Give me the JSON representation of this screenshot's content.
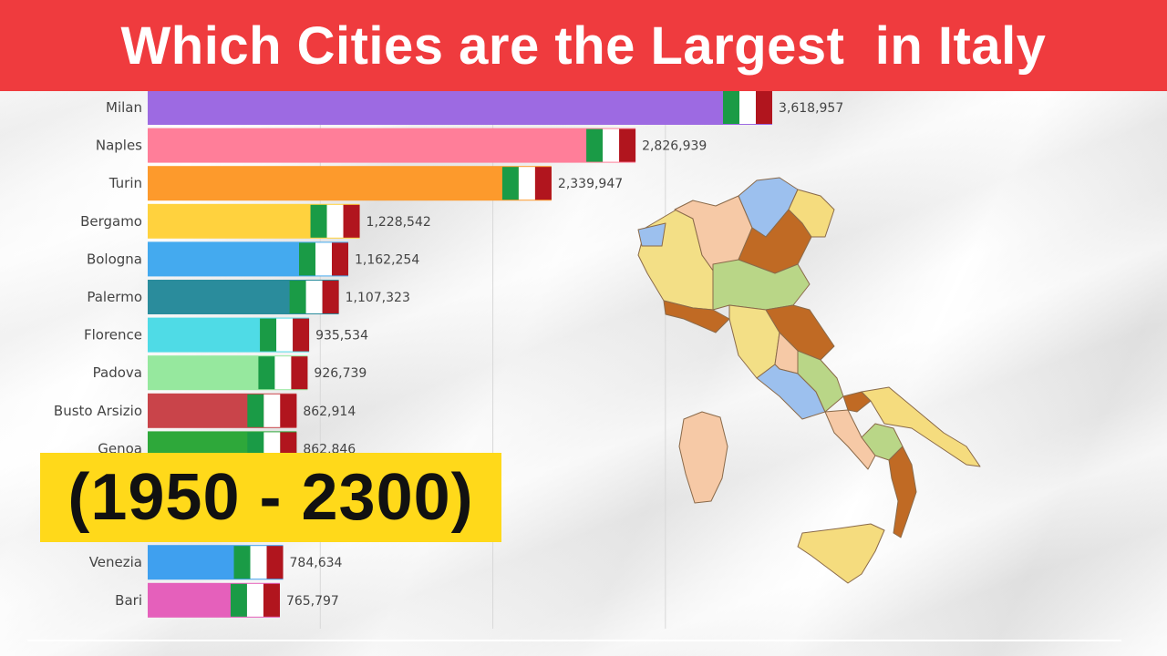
{
  "header": {
    "title": "Which Cities are the Largest  in Italy"
  },
  "period_badge": {
    "text": "(1950 - 2300)"
  },
  "map": {
    "icon": "italy-regions-map-icon"
  },
  "colors": {
    "banner": "#ef3b3e",
    "badge": "#ffd91a",
    "flag_green": "#1a9b46",
    "flag_white": "#ffffff",
    "flag_red": "#b1151e"
  },
  "chart_data": {
    "type": "bar",
    "orientation": "horizontal",
    "categories": [
      "Milan",
      "Naples",
      "Turin",
      "Bergamo",
      "Bologna",
      "Palermo",
      "Florence",
      "Padova",
      "Busto Arsizio",
      "Genoa",
      "",
      "",
      "Venezia",
      "Bari"
    ],
    "values": [
      3618957,
      2826939,
      2339947,
      1228542,
      1162254,
      1107323,
      935534,
      926739,
      862914,
      862846,
      null,
      null,
      784634,
      765797
    ],
    "value_labels": [
      "3,618,957",
      "2,826,939",
      "2,339,947",
      "1,228,542",
      "1,162,254",
      "1,107,323",
      "935,534",
      "926,739",
      "862,914",
      "862,846",
      "",
      "",
      "784,634",
      "765,797"
    ],
    "bar_colors": [
      "#9d6ae2",
      "#ff7e99",
      "#fd9a2c",
      "#ffd23e",
      "#44aaef",
      "#2a8c9c",
      "#4fdbe6",
      "#96e89e",
      "#c9444a",
      "#2ea83a",
      "#9ea8b8",
      "#7a8d99",
      "#3fa0ef",
      "#e560bb"
    ],
    "xlim": [
      0,
      3618957
    ],
    "grid": true,
    "legend": "none"
  }
}
